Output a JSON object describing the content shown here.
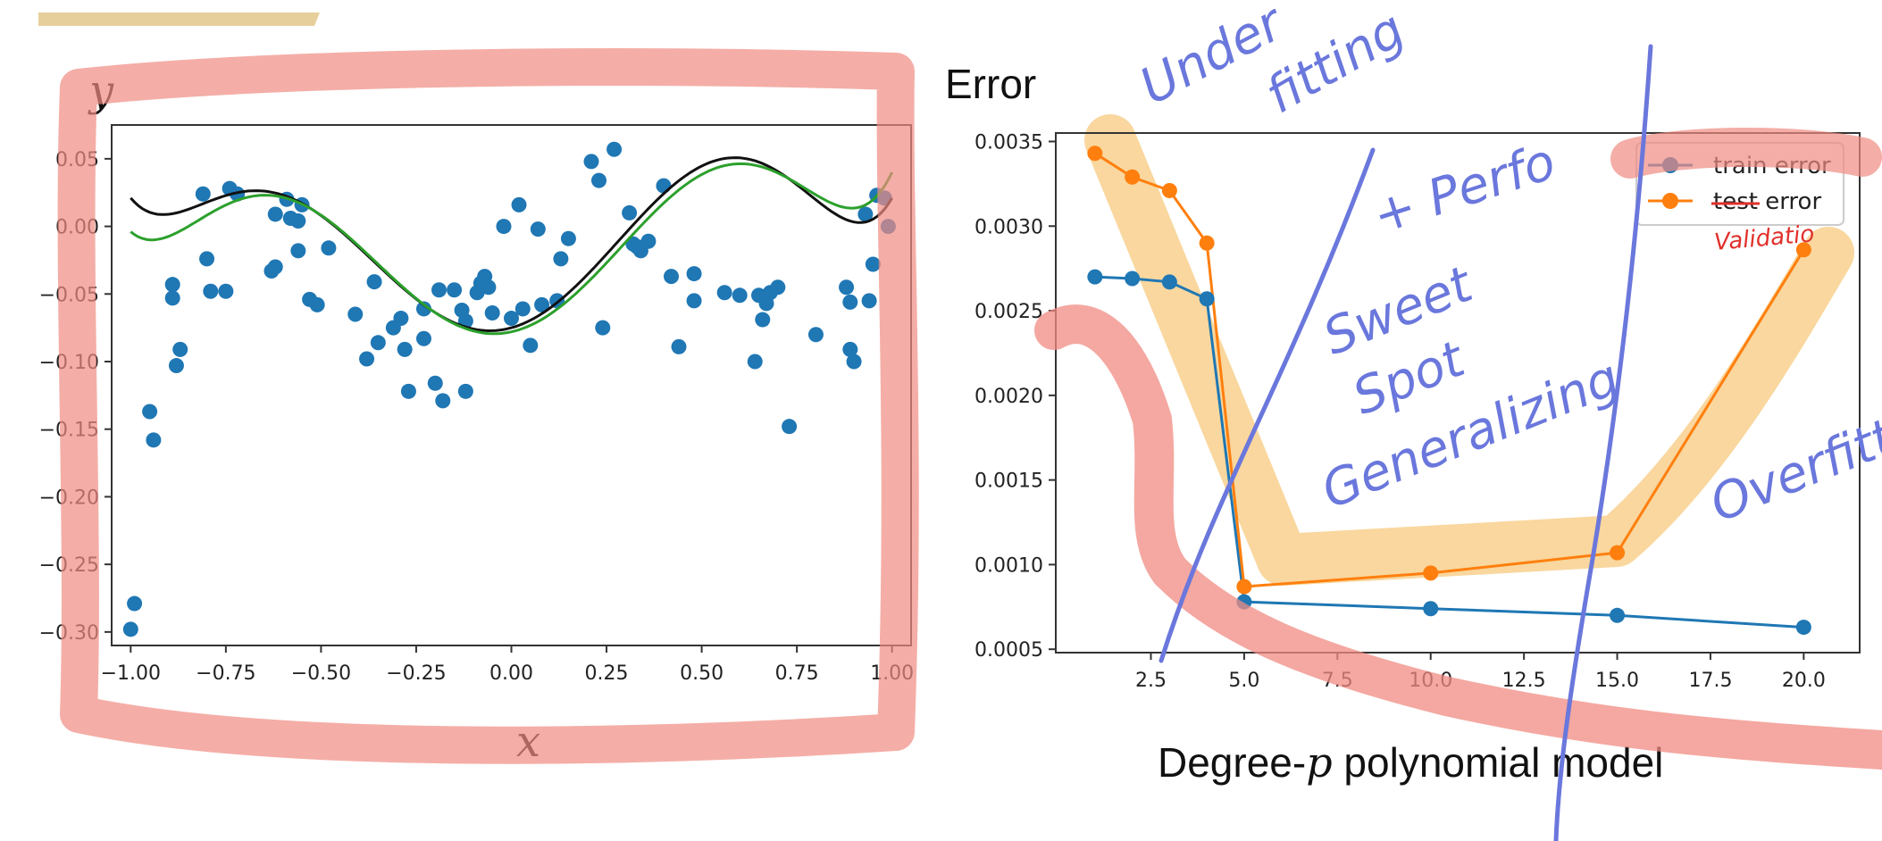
{
  "colors": {
    "scatter": "#1f77b4",
    "true_curve": "#111111",
    "fit_curve": "#2ca02c",
    "train": "#1f77b4",
    "test": "#ff7f0e",
    "pen_blue": "#6a77dc",
    "pen_red": "#f08b82",
    "highlight_orange": "#f6c16a",
    "pen_redtext": "#e0302a",
    "tan_bar": "#e6cf9a"
  },
  "left_labels": {
    "y": "y",
    "x": "x"
  },
  "right_labels": {
    "ylabel": "Error",
    "xlabel_prefix": "Degree-",
    "xlabel_var": "p",
    "xlabel_suffix": " polynomial model"
  },
  "annotations": {
    "under": "Under",
    "fitting": "fitting",
    "perfo": "+ Perfo",
    "sweet": "Sweet",
    "spot": "Spot",
    "generalizing": "Generalizing",
    "overfitting": "Overfittin",
    "validation": "Validatio"
  },
  "chart_data": [
    {
      "type": "scatter",
      "title": "",
      "xlabel": "x",
      "ylabel": "y",
      "xlim": [
        -1.05,
        1.05
      ],
      "ylim": [
        -0.31,
        0.075
      ],
      "xticks": [
        "−1.00",
        "−0.75",
        "−0.50",
        "−0.25",
        "0.00",
        "0.25",
        "0.50",
        "0.75",
        "1.00"
      ],
      "xtick_values": [
        -1.0,
        -0.75,
        -0.5,
        -0.25,
        0.0,
        0.25,
        0.5,
        0.75,
        1.0
      ],
      "yticks": [
        "−0.30",
        "−0.25",
        "−0.20",
        "−0.15",
        "−0.10",
        "−0.05",
        "0.00",
        "0.05"
      ],
      "ytick_values": [
        -0.3,
        -0.25,
        -0.2,
        -0.15,
        -0.1,
        -0.05,
        0.0,
        0.05
      ],
      "points": [
        [
          -1.0,
          -0.298
        ],
        [
          -0.99,
          -0.279
        ],
        [
          -0.95,
          -0.137
        ],
        [
          -0.94,
          -0.158
        ],
        [
          -0.89,
          -0.043
        ],
        [
          -0.89,
          -0.053
        ],
        [
          -0.88,
          -0.103
        ],
        [
          -0.87,
          -0.091
        ],
        [
          -0.81,
          0.024
        ],
        [
          -0.8,
          -0.024
        ],
        [
          -0.79,
          -0.048
        ],
        [
          -0.75,
          -0.048
        ],
        [
          -0.74,
          0.028
        ],
        [
          -0.72,
          0.024
        ],
        [
          -0.63,
          -0.033
        ],
        [
          -0.62,
          -0.03
        ],
        [
          -0.62,
          0.009
        ],
        [
          -0.59,
          0.02
        ],
        [
          -0.58,
          0.006
        ],
        [
          -0.56,
          0.004
        ],
        [
          -0.56,
          -0.018
        ],
        [
          -0.55,
          0.016
        ],
        [
          -0.53,
          -0.054
        ],
        [
          -0.51,
          -0.058
        ],
        [
          -0.48,
          -0.016
        ],
        [
          -0.41,
          -0.065
        ],
        [
          -0.38,
          -0.098
        ],
        [
          -0.36,
          -0.041
        ],
        [
          -0.35,
          -0.086
        ],
        [
          -0.31,
          -0.075
        ],
        [
          -0.29,
          -0.068
        ],
        [
          -0.28,
          -0.091
        ],
        [
          -0.27,
          -0.122
        ],
        [
          -0.23,
          -0.061
        ],
        [
          -0.23,
          -0.083
        ],
        [
          -0.2,
          -0.116
        ],
        [
          -0.19,
          -0.047
        ],
        [
          -0.18,
          -0.129
        ],
        [
          -0.15,
          -0.047
        ],
        [
          -0.13,
          -0.062
        ],
        [
          -0.12,
          -0.07
        ],
        [
          -0.12,
          -0.122
        ],
        [
          -0.09,
          -0.049
        ],
        [
          -0.08,
          -0.042
        ],
        [
          -0.07,
          -0.037
        ],
        [
          -0.06,
          -0.045
        ],
        [
          -0.05,
          -0.064
        ],
        [
          -0.02,
          0.0
        ],
        [
          0.0,
          -0.068
        ],
        [
          0.02,
          0.016
        ],
        [
          0.03,
          -0.061
        ],
        [
          0.05,
          -0.088
        ],
        [
          0.07,
          -0.002
        ],
        [
          0.08,
          -0.058
        ],
        [
          0.12,
          -0.055
        ],
        [
          0.13,
          -0.024
        ],
        [
          0.15,
          -0.009
        ],
        [
          0.21,
          0.048
        ],
        [
          0.23,
          0.034
        ],
        [
          0.24,
          -0.075
        ],
        [
          0.27,
          0.057
        ],
        [
          0.31,
          0.01
        ],
        [
          0.32,
          -0.013
        ],
        [
          0.33,
          -0.015
        ],
        [
          0.34,
          -0.018
        ],
        [
          0.36,
          -0.011
        ],
        [
          0.4,
          0.03
        ],
        [
          0.42,
          -0.037
        ],
        [
          0.44,
          -0.089
        ],
        [
          0.48,
          -0.035
        ],
        [
          0.48,
          -0.055
        ],
        [
          0.56,
          -0.049
        ],
        [
          0.6,
          -0.051
        ],
        [
          0.64,
          -0.1
        ],
        [
          0.65,
          -0.051
        ],
        [
          0.66,
          -0.069
        ],
        [
          0.67,
          -0.057
        ],
        [
          0.68,
          -0.049
        ],
        [
          0.7,
          -0.045
        ],
        [
          0.73,
          -0.148
        ],
        [
          0.8,
          -0.08
        ],
        [
          0.88,
          -0.045
        ],
        [
          0.89,
          -0.056
        ],
        [
          0.89,
          -0.091
        ],
        [
          0.9,
          -0.1
        ],
        [
          0.93,
          0.009
        ],
        [
          0.95,
          -0.028
        ],
        [
          0.94,
          -0.055
        ],
        [
          0.96,
          0.023
        ],
        [
          0.98,
          0.021
        ],
        [
          0.99,
          0.0
        ]
      ],
      "series": [
        {
          "kind": "true",
          "coeffs": [
            -0.075,
            0.078,
            0.683,
            -0.195,
            -1.285,
            0.117,
            0.698
          ]
        },
        {
          "kind": "fit",
          "coeffs": [
            -0.078,
            0.062,
            0.683,
            -0.157,
            -1.285,
            0.117,
            0.698
          ]
        }
      ]
    },
    {
      "type": "line",
      "title": "",
      "xlabel": "Degree-p polynomial model",
      "ylabel": "Error",
      "xlim": [
        -0.05,
        21.5
      ],
      "ylim": [
        0.00048,
        0.00355
      ],
      "xticks": [
        "2.5",
        "5.0",
        "7.5",
        "10.0",
        "12.5",
        "15.0",
        "17.5",
        "20.0"
      ],
      "xtick_values": [
        2.5,
        5.0,
        7.5,
        10.0,
        12.5,
        15.0,
        17.5,
        20.0
      ],
      "yticks": [
        "0.0005",
        "0.0010",
        "0.0015",
        "0.0020",
        "0.0025",
        "0.0030",
        "0.0035"
      ],
      "ytick_values": [
        0.0005,
        0.001,
        0.0015,
        0.002,
        0.0025,
        0.003,
        0.0035
      ],
      "legend_position": "top-right",
      "legend": [
        {
          "name": "train error"
        },
        {
          "name_struck": "test",
          "name_rest": " error"
        }
      ],
      "series": [
        {
          "name": "train error",
          "x": [
            1,
            2,
            3,
            4,
            5,
            10,
            15,
            20
          ],
          "y": [
            0.0027,
            0.00269,
            0.00267,
            0.00257,
            0.00078,
            0.00074,
            0.0007,
            0.00063
          ]
        },
        {
          "name": "test error",
          "x": [
            1,
            2,
            3,
            4,
            5,
            10,
            15,
            20
          ],
          "y": [
            0.00343,
            0.00329,
            0.00321,
            0.0029,
            0.00087,
            0.00095,
            0.00107,
            0.00286
          ]
        }
      ]
    }
  ]
}
